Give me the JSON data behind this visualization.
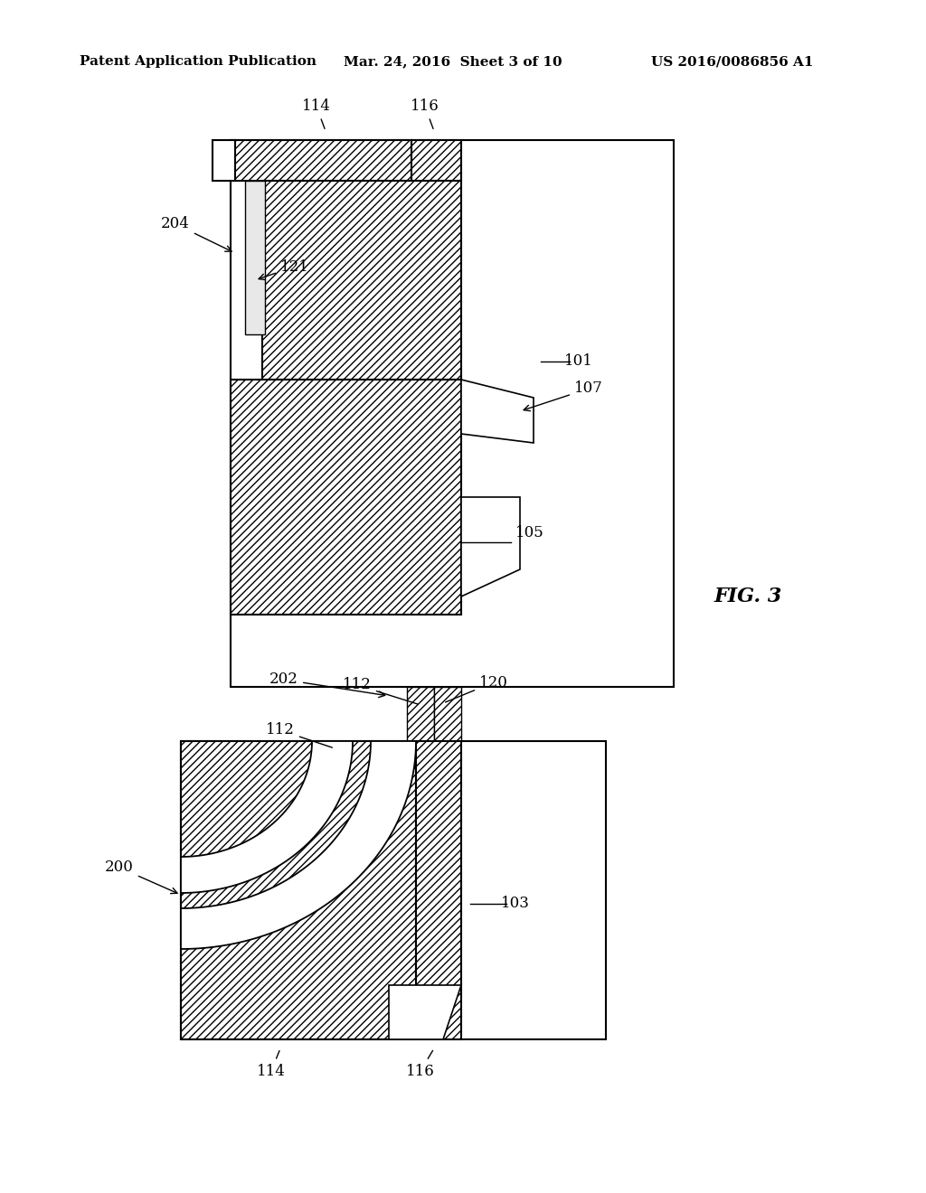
{
  "title_left": "Patent Application Publication",
  "title_mid": "Mar. 24, 2016  Sheet 3 of 10",
  "title_right": "US 2016/0086856 A1",
  "fig_label": "FIG. 3",
  "background_color": "#ffffff"
}
